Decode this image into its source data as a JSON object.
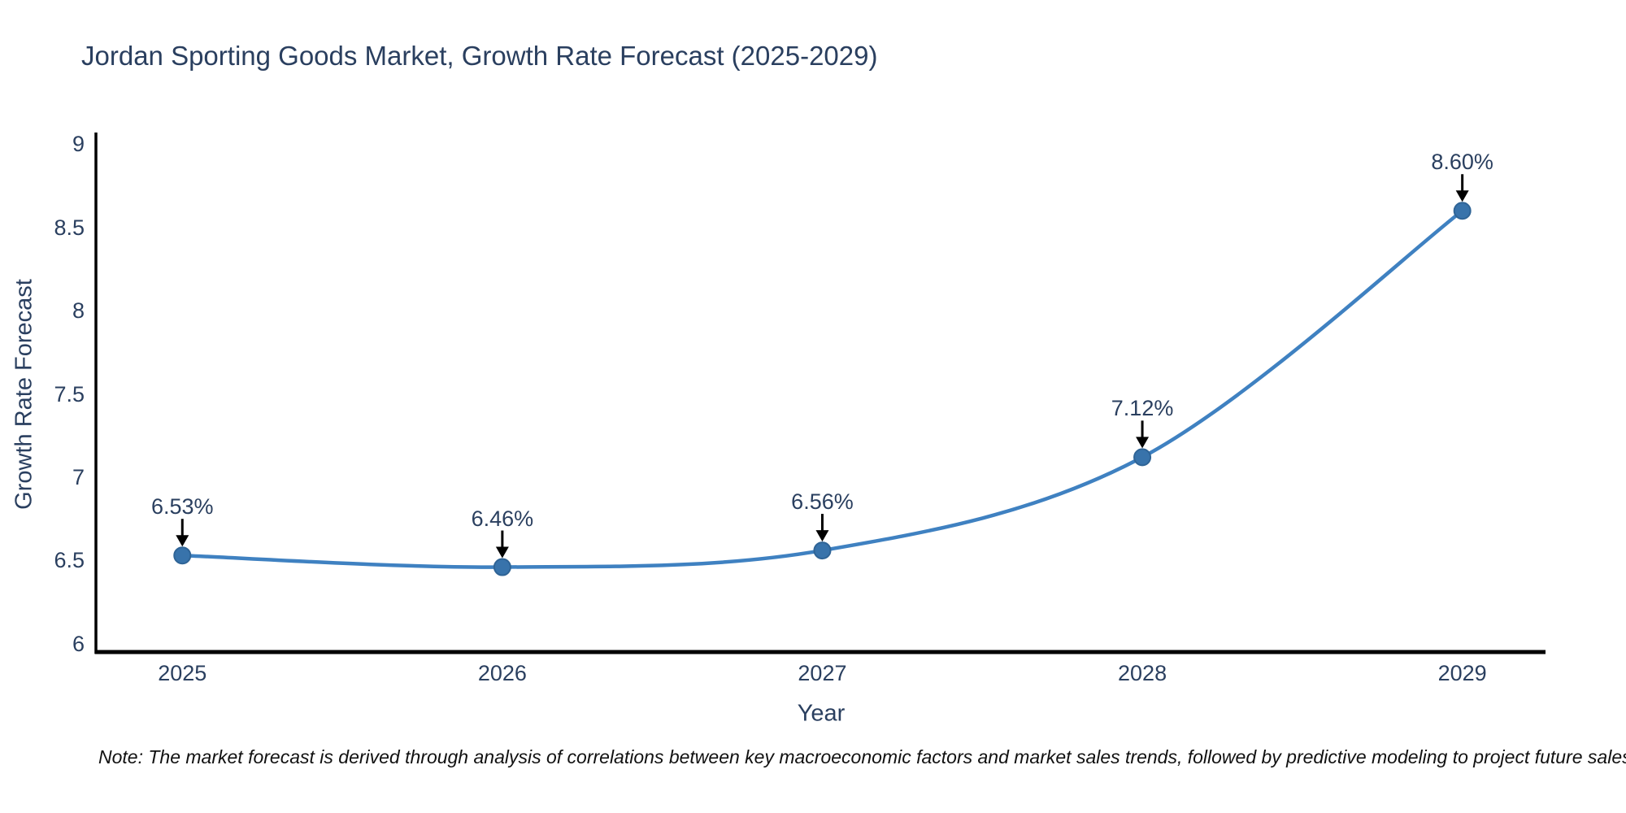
{
  "title": "Jordan Sporting Goods Market, Growth Rate Forecast (2025-2029)",
  "note": "Note: The market forecast is derived through analysis of correlations between key macroeconomic factors and market sales trends, followed by predictive modeling to project future sales",
  "chart_data": {
    "type": "line",
    "title": "Jordan Sporting Goods Market, Growth Rate Forecast (2025-2029)",
    "xlabel": "Year",
    "ylabel": "Growth Rate Forecast",
    "x": [
      2025,
      2026,
      2027,
      2028,
      2029
    ],
    "series": [
      {
        "name": "Growth Rate Forecast",
        "values": [
          6.53,
          6.46,
          6.56,
          7.12,
          8.6
        ]
      }
    ],
    "point_labels": [
      "6.53%",
      "6.46%",
      "6.56%",
      "7.12%",
      "8.60%"
    ],
    "yticks": [
      6,
      6.5,
      7,
      7.5,
      8,
      8.5,
      9
    ],
    "xticks": [
      2025,
      2026,
      2027,
      2028,
      2029
    ],
    "ylim": [
      5.95,
      9.07
    ],
    "xlim": [
      2024.73,
      2029.26
    ],
    "line_shape": "spline",
    "grid": false,
    "legend": "none",
    "colors": {
      "line": "#3f81c1",
      "marker": "#3873ab",
      "marker_edge": "#2f6496",
      "axis": "#000000",
      "arrow": "#000000",
      "text": "#2a3f5f",
      "background": "#ffffff"
    }
  }
}
